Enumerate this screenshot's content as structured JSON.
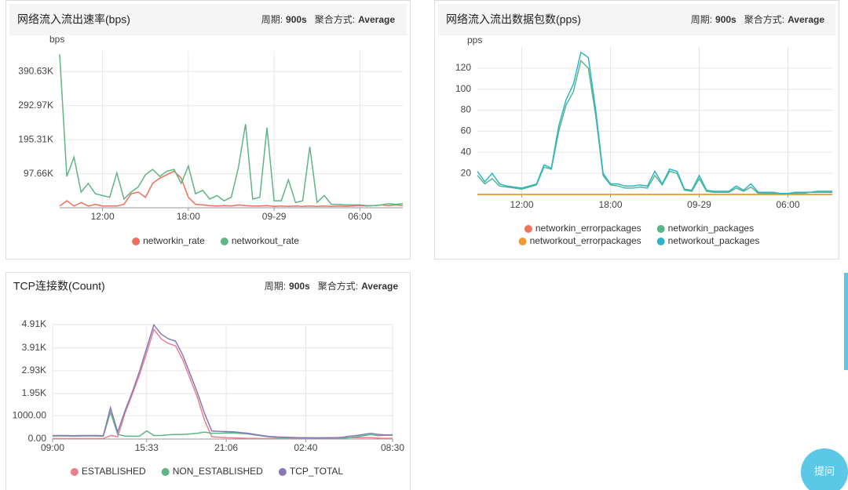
{
  "chart_data": [
    {
      "type": "line",
      "title": "网络流入流出速率(bps)",
      "period_label": "周期:",
      "period": "900s",
      "aggregation_label": "聚合方式:",
      "aggregation": "Average",
      "y_label": "bps",
      "categories": [
        null,
        null,
        null,
        null,
        null,
        null,
        "12:00",
        null,
        null,
        null,
        null,
        null,
        null,
        null,
        null,
        null,
        null,
        null,
        "18:00",
        null,
        null,
        null,
        null,
        null,
        null,
        null,
        null,
        null,
        null,
        null,
        "09-29",
        null,
        null,
        null,
        null,
        null,
        null,
        null,
        null,
        null,
        null,
        null,
        "06:00",
        null,
        null,
        null,
        null,
        null,
        null
      ],
      "ylim": [
        0,
        450000
      ],
      "yticks": [
        {
          "value": 97660,
          "label": "97.66K"
        },
        {
          "value": 195310,
          "label": "195.31K"
        },
        {
          "value": 292970,
          "label": "292.97K"
        },
        {
          "value": 390630,
          "label": "390.63K"
        }
      ],
      "grid": true,
      "series": [
        {
          "name": "networkin_rate",
          "color": "#ee6e5b",
          "values": [
            5000,
            20000,
            5000,
            15000,
            5000,
            10000,
            5000,
            5000,
            5000,
            10000,
            40000,
            45000,
            30000,
            70000,
            85000,
            95000,
            105000,
            85000,
            30000,
            10000,
            8000,
            6000,
            5000,
            6000,
            5000,
            8000,
            6000,
            5000,
            5000,
            6000,
            4000,
            5000,
            4000,
            5000,
            4000,
            5000,
            4000,
            5000,
            4000,
            5000,
            4000,
            5000,
            6000,
            5000,
            6000,
            8000,
            6000,
            8000,
            6000
          ]
        },
        {
          "name": "networkout_rate",
          "color": "#5fb585",
          "values": [
            440000,
            90000,
            145000,
            45000,
            70000,
            40000,
            35000,
            30000,
            100000,
            25000,
            45000,
            60000,
            95000,
            110000,
            90000,
            105000,
            110000,
            70000,
            120000,
            40000,
            50000,
            25000,
            35000,
            20000,
            30000,
            115000,
            240000,
            25000,
            30000,
            230000,
            20000,
            20000,
            80000,
            15000,
            20000,
            175000,
            15000,
            35000,
            10000,
            10000,
            8000,
            8000,
            8000,
            6000,
            6000,
            8000,
            12000,
            10000,
            12000
          ]
        }
      ]
    },
    {
      "type": "line",
      "title": "网络流入流出数据包数(pps)",
      "period_label": "周期:",
      "period": "900s",
      "aggregation_label": "聚合方式:",
      "aggregation": "Average",
      "y_label": "pps",
      "categories": [
        null,
        null,
        null,
        null,
        null,
        null,
        "12:00",
        null,
        null,
        null,
        null,
        null,
        null,
        null,
        null,
        null,
        null,
        null,
        "18:00",
        null,
        null,
        null,
        null,
        null,
        null,
        null,
        null,
        null,
        null,
        null,
        "09-29",
        null,
        null,
        null,
        null,
        null,
        null,
        null,
        null,
        null,
        null,
        null,
        "06:00",
        null,
        null,
        null,
        null,
        null,
        null
      ],
      "ylim": [
        0,
        140
      ],
      "yticks": [
        20,
        40,
        60,
        80,
        100,
        120
      ],
      "grid": true,
      "series": [
        {
          "name": "networkin_errorpackages",
          "color": "#f0735b",
          "values": [
            0,
            0,
            0,
            0,
            0,
            0,
            0,
            0,
            0,
            0,
            0,
            0,
            0,
            0,
            0,
            0,
            0,
            0,
            0,
            0,
            0,
            0,
            0,
            0,
            0,
            0,
            0,
            0,
            0,
            0,
            0,
            0,
            0,
            0,
            0,
            0,
            0,
            0,
            0,
            0,
            0,
            0,
            0,
            0,
            0,
            0,
            0,
            0,
            0
          ]
        },
        {
          "name": "networkin_packages",
          "color": "#5bb58a",
          "values": [
            18,
            10,
            15,
            8,
            7,
            6,
            5,
            7,
            9,
            26,
            24,
            60,
            85,
            98,
            127,
            120,
            75,
            18,
            9,
            8,
            6,
            6,
            7,
            6,
            18,
            9,
            22,
            20,
            4,
            3,
            15,
            3,
            2,
            2,
            2,
            6,
            3,
            7,
            1,
            1,
            1,
            1,
            1,
            1,
            1,
            2,
            2,
            2,
            2
          ]
        },
        {
          "name": "networkout_errorpackages",
          "color": "#f29b2c",
          "values": [
            0,
            0,
            0,
            0,
            0,
            0,
            0,
            0,
            0,
            0,
            0,
            0,
            0,
            0,
            0,
            0,
            0,
            0,
            0,
            0,
            0,
            0,
            0,
            0,
            0,
            0,
            0,
            0,
            0,
            0,
            0,
            0,
            0,
            0,
            0,
            0,
            0,
            0,
            0,
            0,
            0,
            0,
            0,
            0,
            0,
            0,
            0,
            0,
            0
          ]
        },
        {
          "name": "networkout_packages",
          "color": "#2bb5c8",
          "values": [
            22,
            12,
            20,
            10,
            8,
            7,
            6,
            8,
            10,
            28,
            25,
            65,
            90,
            105,
            135,
            130,
            80,
            20,
            10,
            10,
            8,
            8,
            9,
            8,
            22,
            10,
            24,
            22,
            5,
            4,
            18,
            4,
            3,
            3,
            3,
            8,
            4,
            10,
            2,
            2,
            2,
            1,
            1,
            2,
            2,
            2,
            3,
            3,
            3
          ]
        }
      ]
    },
    {
      "type": "line",
      "title": "TCP连接数(Count)",
      "period_label": "周期:",
      "period": "900s",
      "aggregation_label": "聚合方式:",
      "aggregation": "Average",
      "categories": [
        "09:00",
        null,
        null,
        null,
        null,
        null,
        null,
        null,
        null,
        null,
        null,
        null,
        null,
        "15:33",
        null,
        null,
        null,
        null,
        null,
        null,
        null,
        null,
        null,
        null,
        "21:06",
        null,
        null,
        null,
        null,
        null,
        null,
        null,
        null,
        null,
        null,
        "02:40",
        null,
        null,
        null,
        null,
        null,
        null,
        null,
        null,
        null,
        null,
        null,
        "08:30"
      ],
      "ylim": [
        0,
        4910
      ],
      "yticks": [
        {
          "value": 0,
          "label": "0.00"
        },
        {
          "value": 1000,
          "label": "1000.00"
        },
        {
          "value": 1950,
          "label": "1.95K"
        },
        {
          "value": 2930,
          "label": "2.93K"
        },
        {
          "value": 3910,
          "label": "3.91K"
        },
        {
          "value": 4910,
          "label": "4.91K"
        }
      ],
      "grid": true,
      "series": [
        {
          "name": "ESTABLISHED",
          "color": "#e8808f",
          "values": [
            20,
            20,
            20,
            20,
            20,
            20,
            20,
            20,
            150,
            100,
            1100,
            1900,
            2750,
            3700,
            4700,
            4300,
            4100,
            4000,
            3400,
            2600,
            1800,
            800,
            100,
            80,
            60,
            50,
            40,
            30,
            30,
            20,
            20,
            20,
            20,
            20,
            20,
            20,
            20,
            20,
            20,
            20,
            30,
            60,
            60,
            60,
            60,
            40,
            30,
            30
          ]
        },
        {
          "name": "NON_ESTABLISHED",
          "color": "#5fb585",
          "values": [
            130,
            130,
            130,
            120,
            130,
            130,
            130,
            120,
            1150,
            200,
            130,
            120,
            120,
            350,
            150,
            150,
            180,
            200,
            200,
            220,
            250,
            300,
            250,
            250,
            260,
            260,
            240,
            220,
            170,
            130,
            90,
            70,
            60,
            50,
            40,
            40,
            35,
            35,
            40,
            40,
            50,
            60,
            90,
            140,
            190,
            140,
            160,
            160
          ]
        },
        {
          "name": "TCP_TOTAL",
          "color": "#8a78b8",
          "values": [
            150,
            150,
            150,
            140,
            150,
            150,
            150,
            140,
            1350,
            300,
            1200,
            2000,
            2900,
            3900,
            4900,
            4500,
            4300,
            4200,
            3600,
            2800,
            2000,
            1100,
            350,
            330,
            320,
            310,
            280,
            250,
            200,
            150,
            110,
            90,
            80,
            70,
            60,
            60,
            55,
            55,
            60,
            60,
            70,
            120,
            150,
            200,
            250,
            200,
            180,
            180
          ]
        }
      ]
    }
  ],
  "help_button": "提问"
}
